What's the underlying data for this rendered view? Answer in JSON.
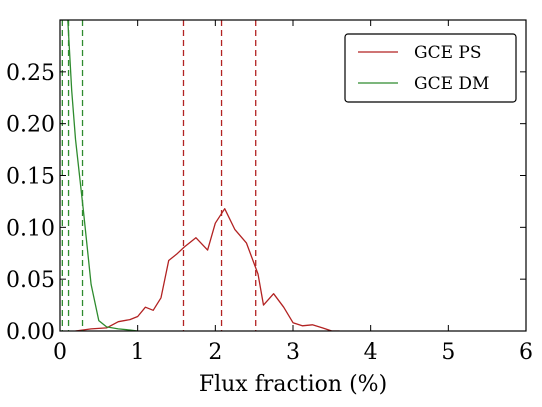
{
  "chart_data": {
    "type": "line",
    "xlabel": "Flux fraction (%)",
    "ylabel": "",
    "xlim": [
      0,
      6
    ],
    "ylim": [
      0,
      0.3
    ],
    "x_ticks": [
      "0",
      "1",
      "2",
      "3",
      "4",
      "5",
      "6"
    ],
    "y_ticks": [
      "0.00",
      "0.05",
      "0.10",
      "0.15",
      "0.20",
      "0.25"
    ],
    "legend_position": "top-right",
    "series": [
      {
        "name": "GCE PS",
        "color": "#b22222",
        "x": [
          0.2,
          0.4,
          0.6,
          0.75,
          0.9,
          1.0,
          1.1,
          1.2,
          1.3,
          1.4,
          1.5,
          1.6,
          1.75,
          1.9,
          2.0,
          2.12,
          2.25,
          2.4,
          2.55,
          2.62,
          2.75,
          2.88,
          3.0,
          3.12,
          3.25,
          3.38,
          3.5,
          3.6
        ],
        "y": [
          0.0,
          0.002,
          0.003,
          0.009,
          0.011,
          0.014,
          0.023,
          0.02,
          0.032,
          0.068,
          0.074,
          0.081,
          0.09,
          0.078,
          0.104,
          0.118,
          0.098,
          0.085,
          0.055,
          0.025,
          0.036,
          0.023,
          0.008,
          0.005,
          0.006,
          0.003,
          0.0,
          0.0
        ]
      },
      {
        "name": "GCE DM",
        "color": "#2e8b2e",
        "x": [
          0.0,
          0.05,
          0.1,
          0.15,
          0.2,
          0.3,
          0.4,
          0.5,
          0.6,
          0.75,
          0.9,
          1.0
        ],
        "y": [
          0.3,
          0.3,
          0.3,
          0.232,
          0.185,
          0.117,
          0.045,
          0.01,
          0.004,
          0.002,
          0.001,
          0.0
        ]
      }
    ],
    "vlines": [
      {
        "x": 1.59,
        "color": "#b22222"
      },
      {
        "x": 2.08,
        "color": "#b22222"
      },
      {
        "x": 2.52,
        "color": "#b22222"
      },
      {
        "x": 0.03,
        "color": "#2e8b2e"
      },
      {
        "x": 0.11,
        "color": "#2e8b2e"
      },
      {
        "x": 0.29,
        "color": "#2e8b2e"
      }
    ]
  }
}
